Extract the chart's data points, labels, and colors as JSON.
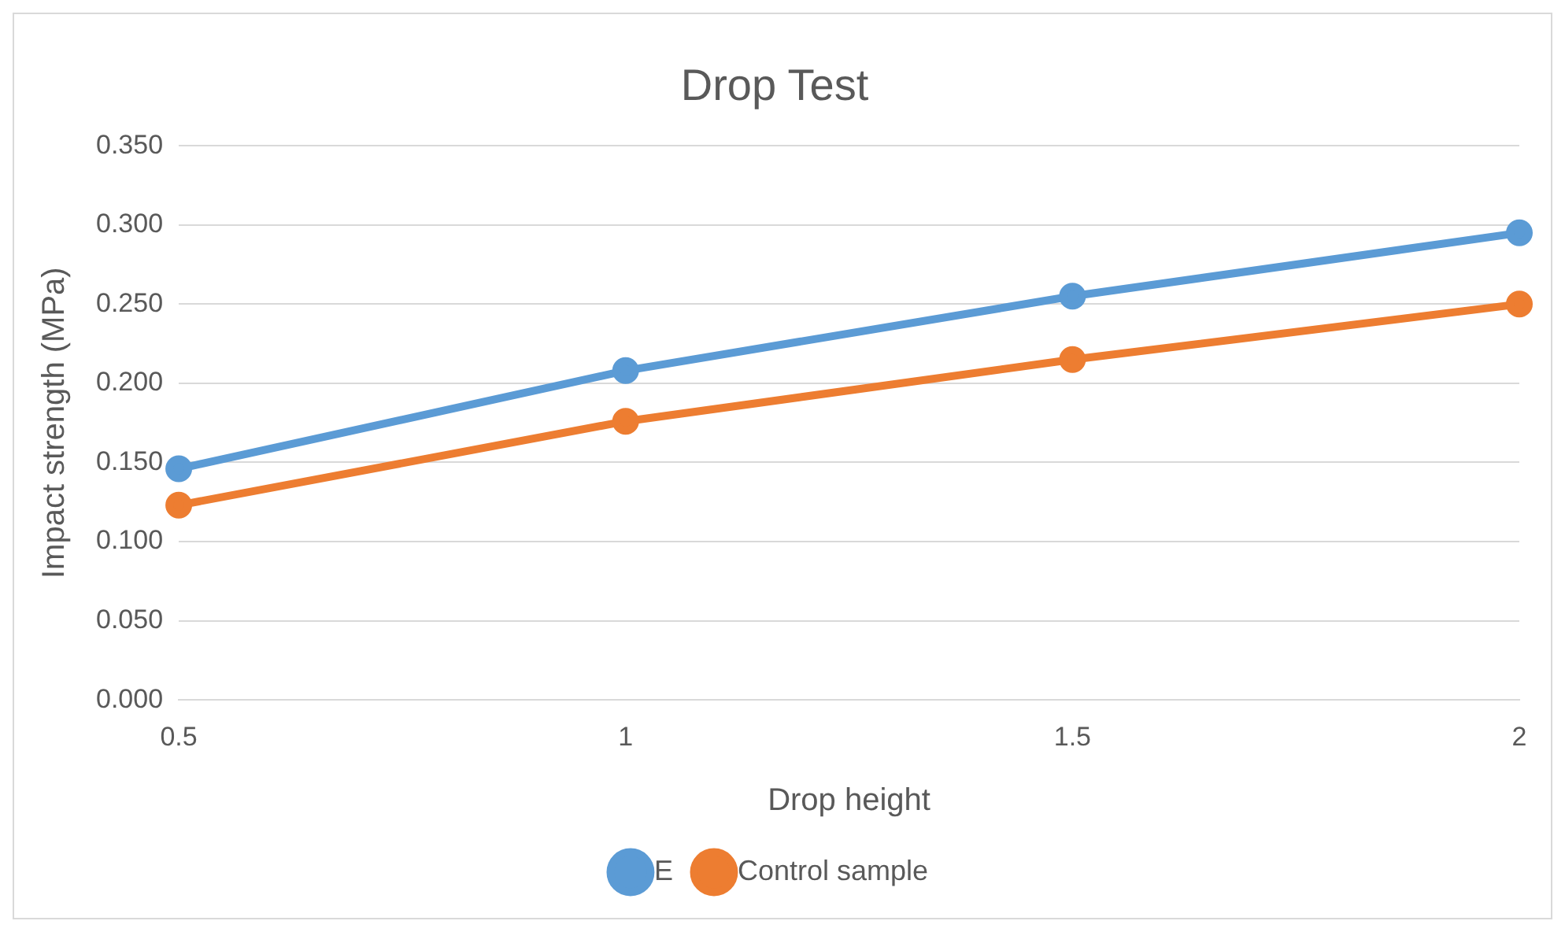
{
  "chart_data": {
    "type": "line",
    "title": "Drop Test",
    "xlabel": "Drop height",
    "ylabel": "Impact strength (MPa)",
    "categories": [
      "0.5",
      "1",
      "1.5",
      "2"
    ],
    "series": [
      {
        "name": "E",
        "color": "#5b9bd5",
        "values": [
          0.146,
          0.208,
          0.255,
          0.295
        ]
      },
      {
        "name": "Control sample",
        "color": "#ed7d31",
        "values": [
          0.123,
          0.176,
          0.215,
          0.25
        ]
      }
    ],
    "ylim": [
      0,
      0.35
    ],
    "yticks": [
      {
        "value": 0,
        "label": "0.000"
      },
      {
        "value": 0.05,
        "label": "0.050"
      },
      {
        "value": 0.1,
        "label": "0.100"
      },
      {
        "value": 0.15,
        "label": "0.150"
      },
      {
        "value": 0.2,
        "label": "0.200"
      },
      {
        "value": 0.25,
        "label": "0.250"
      },
      {
        "value": 0.3,
        "label": "0.300"
      },
      {
        "value": 0.35,
        "label": "0.350"
      }
    ],
    "grid": "y",
    "legend": "bottom",
    "marker": "circle",
    "line_style": "solid"
  }
}
